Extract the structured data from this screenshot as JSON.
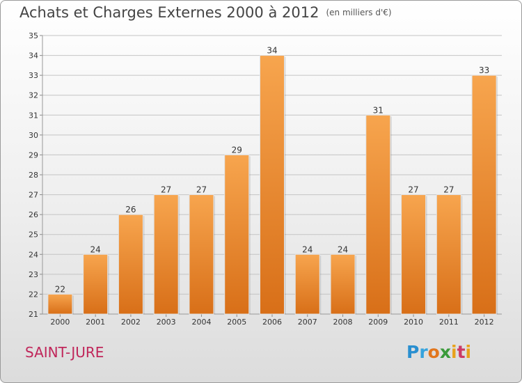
{
  "title": "Achats et Charges Externes 2000 à 2012",
  "subtitle": "(en milliers d'€)",
  "commune": "SAINT-JURE",
  "logo_text": "Proxiti",
  "colors": {
    "bar_top": "#f7a54e",
    "bar_bottom": "#d86f18",
    "grid": "#c4c4c4",
    "text": "#333333"
  },
  "chart_data": {
    "type": "bar",
    "title": "Achats et Charges Externes 2000 à 2012",
    "categories": [
      "2000",
      "2001",
      "2002",
      "2003",
      "2004",
      "2005",
      "2006",
      "2007",
      "2008",
      "2009",
      "2010",
      "2011",
      "2012"
    ],
    "values": [
      22,
      24,
      26,
      27,
      27,
      29,
      34,
      24,
      24,
      31,
      27,
      27,
      33
    ],
    "ylim": [
      21,
      35
    ],
    "yticks": [
      21,
      22,
      23,
      24,
      25,
      26,
      27,
      28,
      29,
      30,
      31,
      32,
      33,
      34,
      35
    ],
    "grid": true,
    "data_labels": true
  }
}
